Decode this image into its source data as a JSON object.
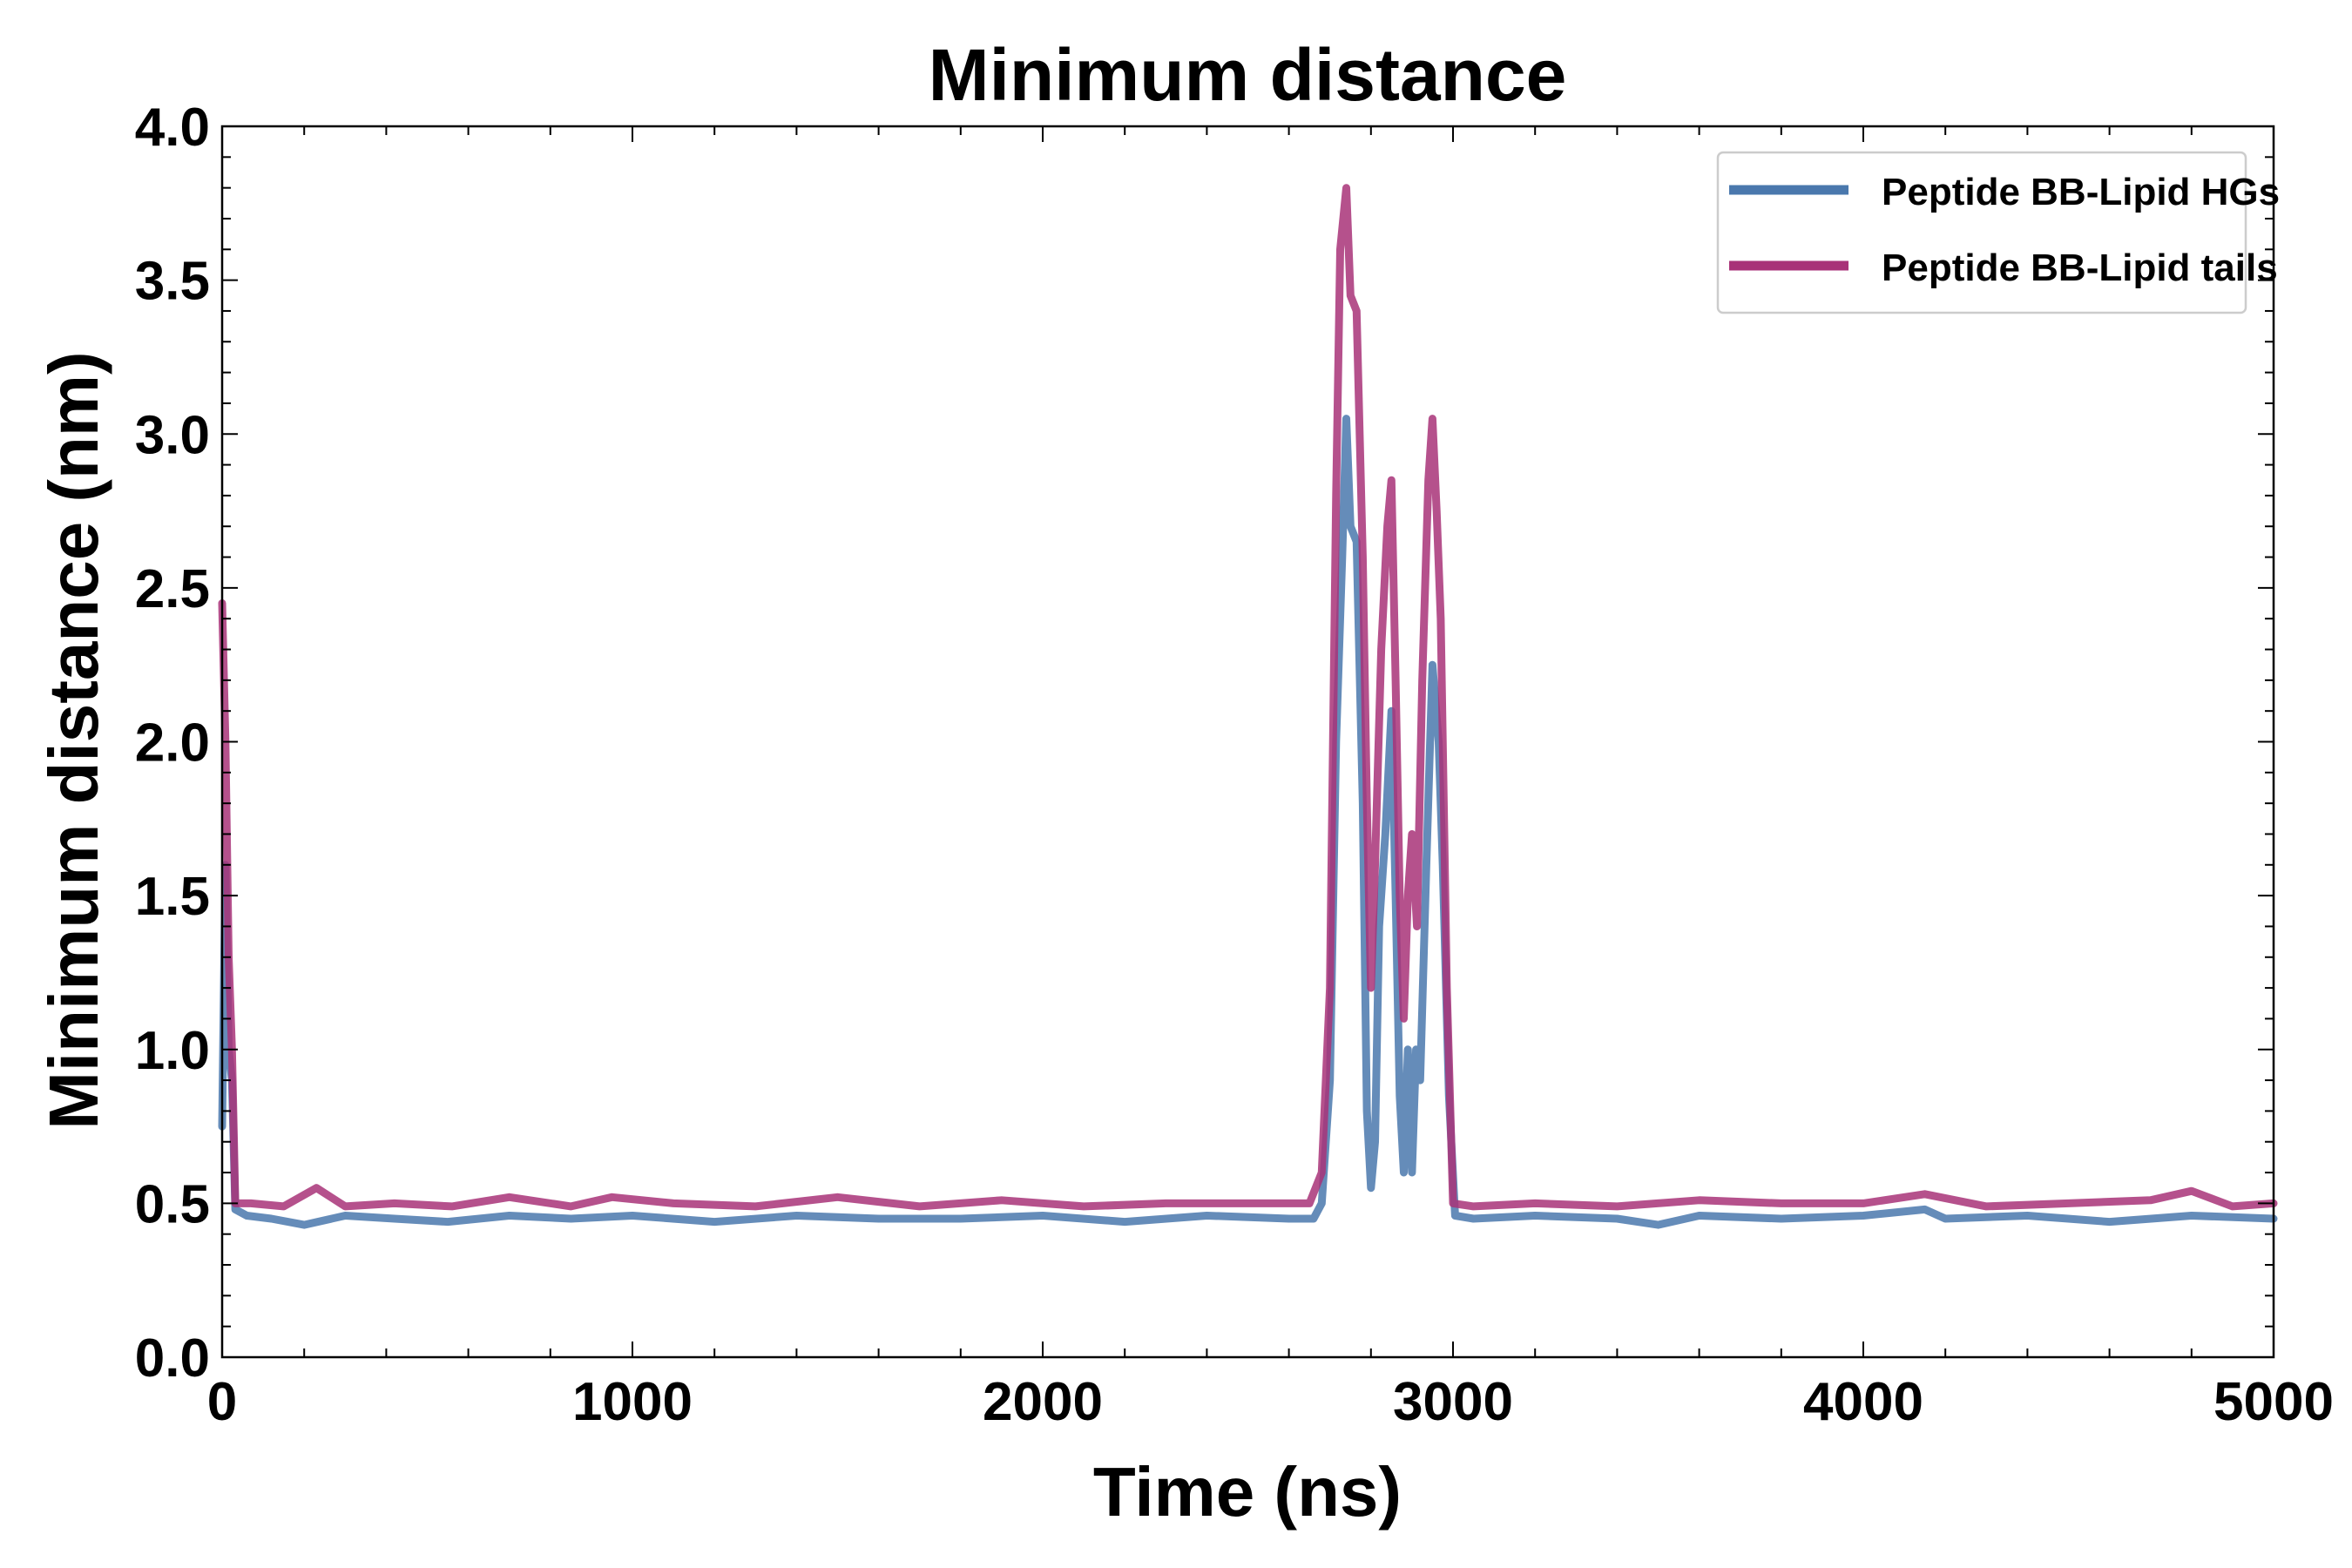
{
  "chart_data": {
    "type": "line",
    "title": "Minimum distance",
    "xlabel": "Time (ns)",
    "ylabel": "Minimum distance (nm)",
    "xlim": [
      0,
      5000
    ],
    "ylim": [
      0.0,
      4.0
    ],
    "x_ticks": [
      "0",
      "1000",
      "2000",
      "3000",
      "4000",
      "5000"
    ],
    "y_ticks": [
      "0.0",
      "0.5",
      "1.0",
      "1.5",
      "2.0",
      "2.5",
      "3.0",
      "3.5",
      "4.0"
    ],
    "legend_position": "top-right",
    "series": [
      {
        "name": "Peptide BB-Lipid HGs",
        "color": "#4a78ad",
        "points": [
          [
            0,
            0.75
          ],
          [
            8,
            1.6
          ],
          [
            16,
            1.0
          ],
          [
            24,
            0.9
          ],
          [
            32,
            0.48
          ],
          [
            60,
            0.46
          ],
          [
            120,
            0.45
          ],
          [
            200,
            0.43
          ],
          [
            300,
            0.46
          ],
          [
            420,
            0.45
          ],
          [
            550,
            0.44
          ],
          [
            700,
            0.46
          ],
          [
            850,
            0.45
          ],
          [
            1000,
            0.46
          ],
          [
            1200,
            0.44
          ],
          [
            1400,
            0.46
          ],
          [
            1600,
            0.45
          ],
          [
            1800,
            0.45
          ],
          [
            2000,
            0.46
          ],
          [
            2200,
            0.44
          ],
          [
            2400,
            0.46
          ],
          [
            2600,
            0.45
          ],
          [
            2660,
            0.45
          ],
          [
            2680,
            0.5
          ],
          [
            2700,
            0.9
          ],
          [
            2715,
            2.0
          ],
          [
            2730,
            2.6
          ],
          [
            2740,
            3.05
          ],
          [
            2750,
            2.7
          ],
          [
            2765,
            2.65
          ],
          [
            2780,
            1.8
          ],
          [
            2790,
            0.8
          ],
          [
            2800,
            0.55
          ],
          [
            2810,
            0.7
          ],
          [
            2820,
            1.4
          ],
          [
            2835,
            1.7
          ],
          [
            2850,
            2.1
          ],
          [
            2860,
            1.5
          ],
          [
            2870,
            0.85
          ],
          [
            2880,
            0.6
          ],
          [
            2890,
            1.0
          ],
          [
            2900,
            0.6
          ],
          [
            2910,
            1.0
          ],
          [
            2920,
            0.9
          ],
          [
            2935,
            1.6
          ],
          [
            2950,
            2.25
          ],
          [
            2965,
            2.0
          ],
          [
            2975,
            1.6
          ],
          [
            2990,
            0.85
          ],
          [
            3005,
            0.46
          ],
          [
            3050,
            0.45
          ],
          [
            3200,
            0.46
          ],
          [
            3400,
            0.45
          ],
          [
            3500,
            0.43
          ],
          [
            3600,
            0.46
          ],
          [
            3800,
            0.45
          ],
          [
            4000,
            0.46
          ],
          [
            4150,
            0.48
          ],
          [
            4200,
            0.45
          ],
          [
            4400,
            0.46
          ],
          [
            4600,
            0.44
          ],
          [
            4800,
            0.46
          ],
          [
            5000,
            0.45
          ]
        ]
      },
      {
        "name": "Peptide BB-Lipid tails",
        "color": "#a83278",
        "points": [
          [
            0,
            2.45
          ],
          [
            8,
            2.0
          ],
          [
            16,
            1.3
          ],
          [
            24,
            1.0
          ],
          [
            32,
            0.5
          ],
          [
            70,
            0.5
          ],
          [
            150,
            0.49
          ],
          [
            230,
            0.55
          ],
          [
            300,
            0.49
          ],
          [
            420,
            0.5
          ],
          [
            560,
            0.49
          ],
          [
            700,
            0.52
          ],
          [
            850,
            0.49
          ],
          [
            950,
            0.52
          ],
          [
            1100,
            0.5
          ],
          [
            1300,
            0.49
          ],
          [
            1500,
            0.52
          ],
          [
            1700,
            0.49
          ],
          [
            1900,
            0.51
          ],
          [
            2100,
            0.49
          ],
          [
            2300,
            0.5
          ],
          [
            2500,
            0.5
          ],
          [
            2650,
            0.5
          ],
          [
            2680,
            0.6
          ],
          [
            2700,
            1.2
          ],
          [
            2715,
            2.8
          ],
          [
            2725,
            3.6
          ],
          [
            2740,
            3.8
          ],
          [
            2750,
            3.45
          ],
          [
            2765,
            3.4
          ],
          [
            2780,
            2.6
          ],
          [
            2790,
            1.8
          ],
          [
            2800,
            1.2
          ],
          [
            2810,
            1.6
          ],
          [
            2825,
            2.3
          ],
          [
            2840,
            2.7
          ],
          [
            2850,
            2.85
          ],
          [
            2860,
            2.2
          ],
          [
            2870,
            1.5
          ],
          [
            2880,
            1.1
          ],
          [
            2890,
            1.5
          ],
          [
            2900,
            1.7
          ],
          [
            2912,
            1.4
          ],
          [
            2925,
            2.2
          ],
          [
            2940,
            2.85
          ],
          [
            2950,
            3.05
          ],
          [
            2960,
            2.75
          ],
          [
            2970,
            2.4
          ],
          [
            2985,
            1.2
          ],
          [
            3000,
            0.5
          ],
          [
            3050,
            0.49
          ],
          [
            3200,
            0.5
          ],
          [
            3400,
            0.49
          ],
          [
            3600,
            0.51
          ],
          [
            3800,
            0.5
          ],
          [
            4000,
            0.5
          ],
          [
            4150,
            0.53
          ],
          [
            4300,
            0.49
          ],
          [
            4500,
            0.5
          ],
          [
            4700,
            0.51
          ],
          [
            4800,
            0.54
          ],
          [
            4900,
            0.49
          ],
          [
            5000,
            0.5
          ]
        ]
      }
    ]
  }
}
